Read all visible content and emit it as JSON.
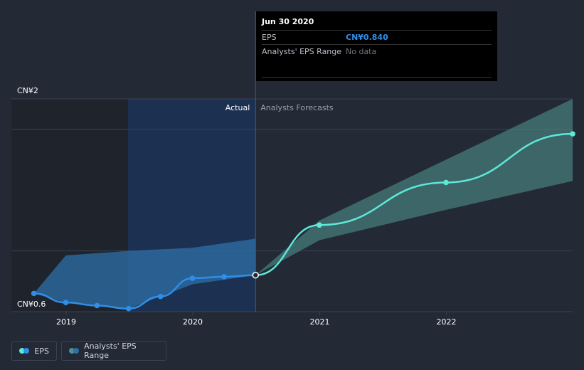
{
  "chart_data": {
    "type": "line",
    "currency": "CN¥",
    "y_labels": [
      "CN¥2",
      "CN¥0.6"
    ],
    "x_tick_labels": [
      "2019",
      "2020",
      "2021",
      "2022"
    ],
    "region_labels": {
      "actual": "Actual",
      "forecast": "Analysts Forecasts"
    },
    "ylim": [
      0.6,
      2.0
    ],
    "series": [
      {
        "name": "EPS",
        "color": "#2f8fe8",
        "points": [
          {
            "x": "2018-09-30",
            "y": 0.72
          },
          {
            "x": "2018-12-31",
            "y": 0.66
          },
          {
            "x": "2019-03-31",
            "y": 0.64
          },
          {
            "x": "2019-06-30",
            "y": 0.62
          },
          {
            "x": "2019-09-30",
            "y": 0.7
          },
          {
            "x": "2019-12-31",
            "y": 0.82
          },
          {
            "x": "2020-03-31",
            "y": 0.83
          },
          {
            "x": "2020-06-30",
            "y": 0.84
          }
        ]
      },
      {
        "name": "EPS forecast",
        "color": "#5ee8d8",
        "points": [
          {
            "x": "2020-06-30",
            "y": 0.84
          },
          {
            "x": "2020-12-31",
            "y": 1.17
          },
          {
            "x": "2021-12-31",
            "y": 1.45
          },
          {
            "x": "2022-12-31",
            "y": 1.77
          }
        ]
      }
    ],
    "ranges": [
      {
        "name": "Analysts' EPS Range (past)",
        "color": "#2f6fa8",
        "points": [
          {
            "x": "2018-09-30",
            "lo": 0.72,
            "hi": 0.72
          },
          {
            "x": "2018-12-31",
            "lo": 0.66,
            "hi": 0.97
          },
          {
            "x": "2019-06-30",
            "lo": 0.62,
            "hi": 1.0
          },
          {
            "x": "2019-12-31",
            "lo": 0.78,
            "hi": 1.02
          },
          {
            "x": "2020-06-30",
            "lo": 0.84,
            "hi": 1.08
          }
        ]
      },
      {
        "name": "Analysts' EPS Range (forecast)",
        "color": "#4f8f8c",
        "points": [
          {
            "x": "2020-06-30",
            "lo": 0.84,
            "hi": 0.84
          },
          {
            "x": "2020-12-31",
            "lo": 1.07,
            "hi": 1.2
          },
          {
            "x": "2021-12-31",
            "lo": 1.27,
            "hi": 1.6
          },
          {
            "x": "2022-12-31",
            "lo": 1.46,
            "hi": 2.0
          }
        ]
      }
    ],
    "highlight_date": "2020-06-30"
  },
  "tooltip": {
    "date": "Jun 30 2020",
    "eps_label": "EPS",
    "eps_value": "CN¥0.840",
    "range_label": "Analysts' EPS Range",
    "range_value": "No data"
  },
  "legend": {
    "eps": "EPS",
    "range": "Analysts' EPS Range",
    "eps_colors": [
      "#5ee8d8",
      "#2f8fe8"
    ],
    "range_colors": [
      "#4f8f8c",
      "#2f6fa8"
    ]
  }
}
